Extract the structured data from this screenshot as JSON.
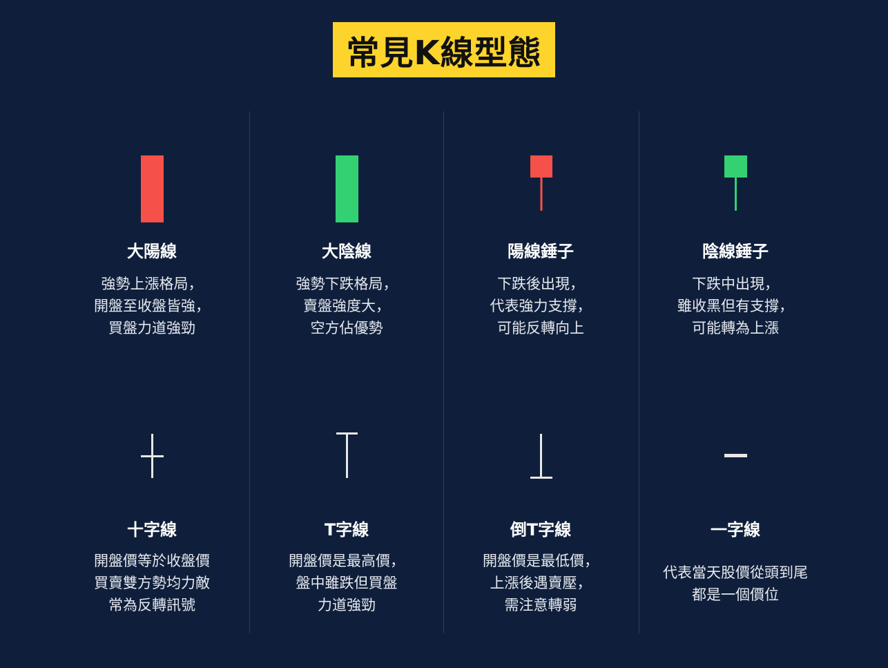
{
  "title": "常見K線型態",
  "colors": {
    "background": "#0f1f3b",
    "title_bg": "#fdd42c",
    "bull": "#f6504a",
    "bear": "#34d173",
    "doji_line": "#e8e8e8",
    "divider": "#2c3d5b"
  },
  "patterns": [
    {
      "name": "大陽線",
      "icon": "bullish-long-candle-icon",
      "desc": [
        "強勢上漲格局，",
        "開盤至收盤皆強，",
        "買盤力道強勁"
      ]
    },
    {
      "name": "大陰線",
      "icon": "bearish-long-candle-icon",
      "desc": [
        "強勢下跌格局，",
        "賣盤強度大，",
        "空方佔優勢"
      ]
    },
    {
      "name": "陽線錘子",
      "icon": "bullish-hammer-icon",
      "desc": [
        "下跌後出現，",
        "代表強力支撐，",
        "可能反轉向上"
      ]
    },
    {
      "name": "陰線錘子",
      "icon": "bearish-hammer-icon",
      "desc": [
        "下跌中出現，",
        "雖收黑但有支撐，",
        "可能轉為上漲"
      ]
    },
    {
      "name": "十字線",
      "icon": "doji-cross-icon",
      "desc": [
        "開盤價等於收盤價",
        "買賣雙方勢均力敵",
        "常為反轉訊號"
      ]
    },
    {
      "name": "T字線",
      "icon": "dragonfly-doji-icon",
      "desc": [
        "開盤價是最高價，",
        "盤中雖跌但買盤",
        "力道強勁"
      ]
    },
    {
      "name": "倒T字線",
      "icon": "gravestone-doji-icon",
      "desc": [
        "開盤價是最低價，",
        "上漲後遇賣壓，",
        "需注意轉弱"
      ]
    },
    {
      "name": "一字線",
      "icon": "four-price-doji-icon",
      "desc": [
        "代表當天股價從頭到尾",
        "都是一個價位"
      ]
    }
  ]
}
